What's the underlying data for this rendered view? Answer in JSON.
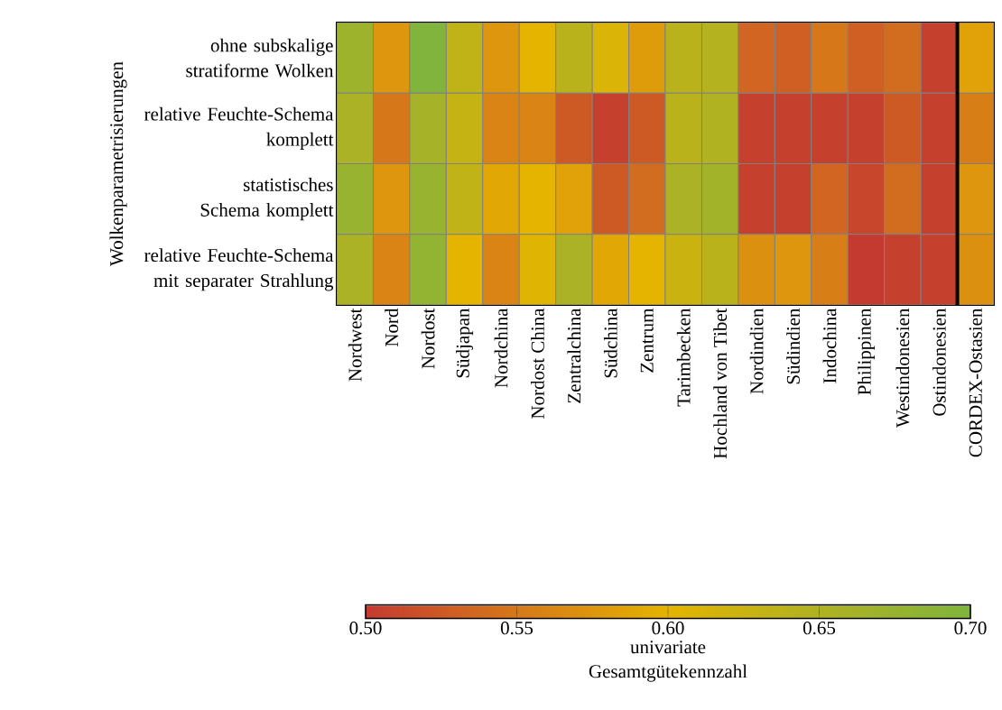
{
  "chart_data": {
    "type": "heatmap",
    "ylabel": "Wolkenparametrisierungen",
    "clabel": "univariate Gesamtgütekennzahl",
    "categories": [
      "Nordwest",
      "Nord",
      "Nordost",
      "Südjapan",
      "Nordchina",
      "Nordost China",
      "Zentralchina",
      "Südchina",
      "Zentrum",
      "Tarimbecken",
      "Hochland von Tibet",
      "Nordindien",
      "Südindien",
      "Indochina",
      "Philippinen",
      "Westindonesien",
      "Ostindonesien",
      "CORDEX-Ostasien"
    ],
    "y_categories": [
      "ohne subskalige stratiforme Wolken",
      "relative Feuchte-Schema komplett",
      "statistisches Schema komplett",
      "relative Feuchte-Schema mit separater Strahlung"
    ],
    "cells": [
      [
        0.67,
        0.575,
        0.7,
        0.635,
        0.575,
        0.6,
        0.64,
        0.61,
        0.58,
        0.64,
        0.645,
        0.535,
        0.53,
        0.55,
        0.53,
        0.54,
        0.505,
        0.585
      ],
      [
        0.655,
        0.55,
        0.66,
        0.63,
        0.56,
        0.56,
        0.525,
        0.505,
        0.525,
        0.64,
        0.65,
        0.505,
        0.505,
        0.505,
        0.505,
        0.525,
        0.505,
        0.555
      ],
      [
        0.675,
        0.575,
        0.675,
        0.635,
        0.59,
        0.6,
        0.585,
        0.525,
        0.54,
        0.655,
        0.665,
        0.505,
        0.505,
        0.535,
        0.51,
        0.54,
        0.505,
        0.575
      ],
      [
        0.655,
        0.56,
        0.68,
        0.6,
        0.56,
        0.605,
        0.655,
        0.59,
        0.6,
        0.625,
        0.64,
        0.57,
        0.575,
        0.555,
        0.5,
        0.505,
        0.505,
        0.57
      ]
    ],
    "clim": [
      0.5,
      0.7
    ],
    "cticks": [
      {
        "value": 0.5,
        "label": "0.50"
      },
      {
        "value": 0.55,
        "label": "0.55"
      },
      {
        "value": 0.6,
        "label": "0.60"
      },
      {
        "value": 0.65,
        "label": "0.65"
      },
      {
        "value": 0.7,
        "label": "0.70"
      }
    ]
  }
}
